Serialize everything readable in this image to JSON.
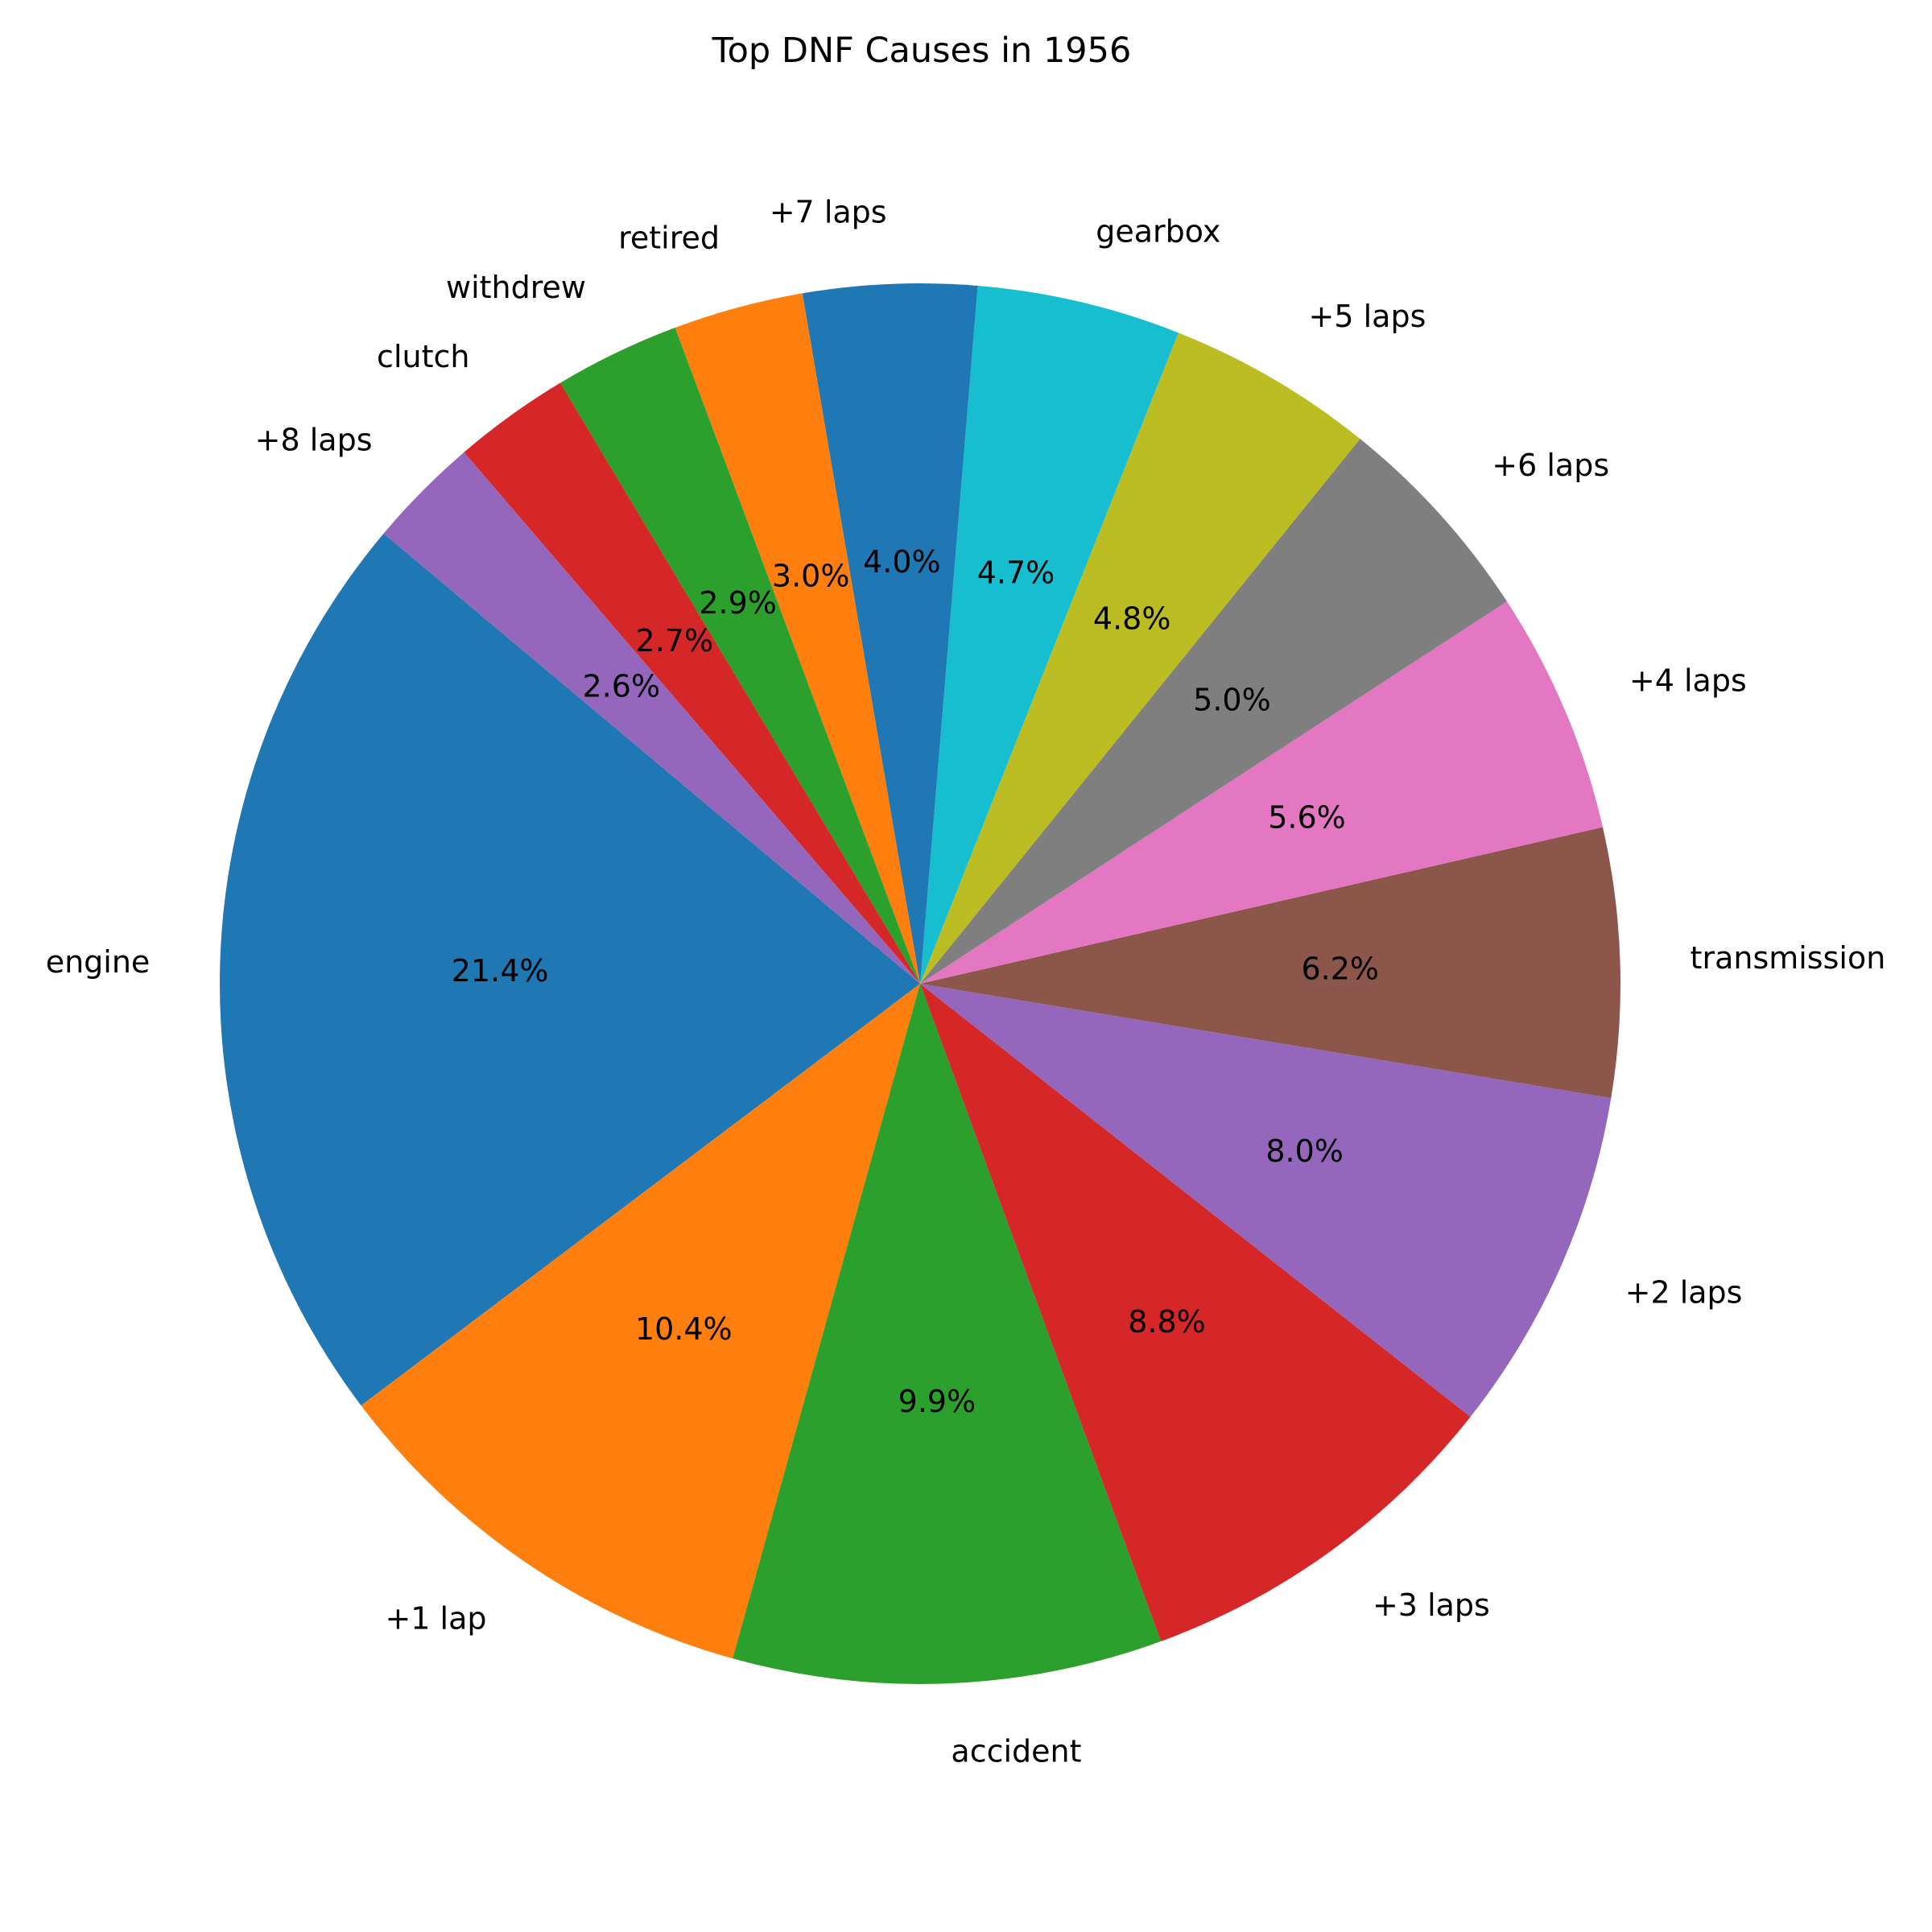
{
  "chart_data": {
    "type": "pie",
    "title": "Top DNF Causes in 1956",
    "start_angle_deg": 140,
    "direction": "counterclockwise",
    "slices": [
      {
        "label": "engine",
        "value": 21.4,
        "pct_label": "21.4%",
        "color": "#1f77b4"
      },
      {
        "label": "+1 lap",
        "value": 10.4,
        "pct_label": "10.4%",
        "color": "#ff7f0e"
      },
      {
        "label": "accident",
        "value": 9.9,
        "pct_label": "9.9%",
        "color": "#2ca02c"
      },
      {
        "label": "+3 laps",
        "value": 8.8,
        "pct_label": "8.8%",
        "color": "#d62728"
      },
      {
        "label": "+2 laps",
        "value": 8.0,
        "pct_label": "8.0%",
        "color": "#9467bd"
      },
      {
        "label": "transmission",
        "value": 6.2,
        "pct_label": "6.2%",
        "color": "#8c564b"
      },
      {
        "label": "+4 laps",
        "value": 5.6,
        "pct_label": "5.6%",
        "color": "#e377c2"
      },
      {
        "label": "+6 laps",
        "value": 5.0,
        "pct_label": "5.0%",
        "color": "#7f7f7f"
      },
      {
        "label": "+5 laps",
        "value": 4.8,
        "pct_label": "4.8%",
        "color": "#bcbd22"
      },
      {
        "label": "gearbox",
        "value": 4.7,
        "pct_label": "4.7%",
        "color": "#17becf"
      },
      {
        "label": "+7 laps",
        "value": 4.0,
        "pct_label": "4.0%",
        "color": "#1f77b4"
      },
      {
        "label": "retired",
        "value": 3.0,
        "pct_label": "3.0%",
        "color": "#ff7f0e"
      },
      {
        "label": "withdrew",
        "value": 2.9,
        "pct_label": "2.9%",
        "color": "#2ca02c"
      },
      {
        "label": "clutch",
        "value": 2.7,
        "pct_label": "2.7%",
        "color": "#d62728"
      },
      {
        "label": "+8 laps",
        "value": 2.6,
        "pct_label": "2.6%",
        "color": "#9467bd"
      }
    ]
  }
}
